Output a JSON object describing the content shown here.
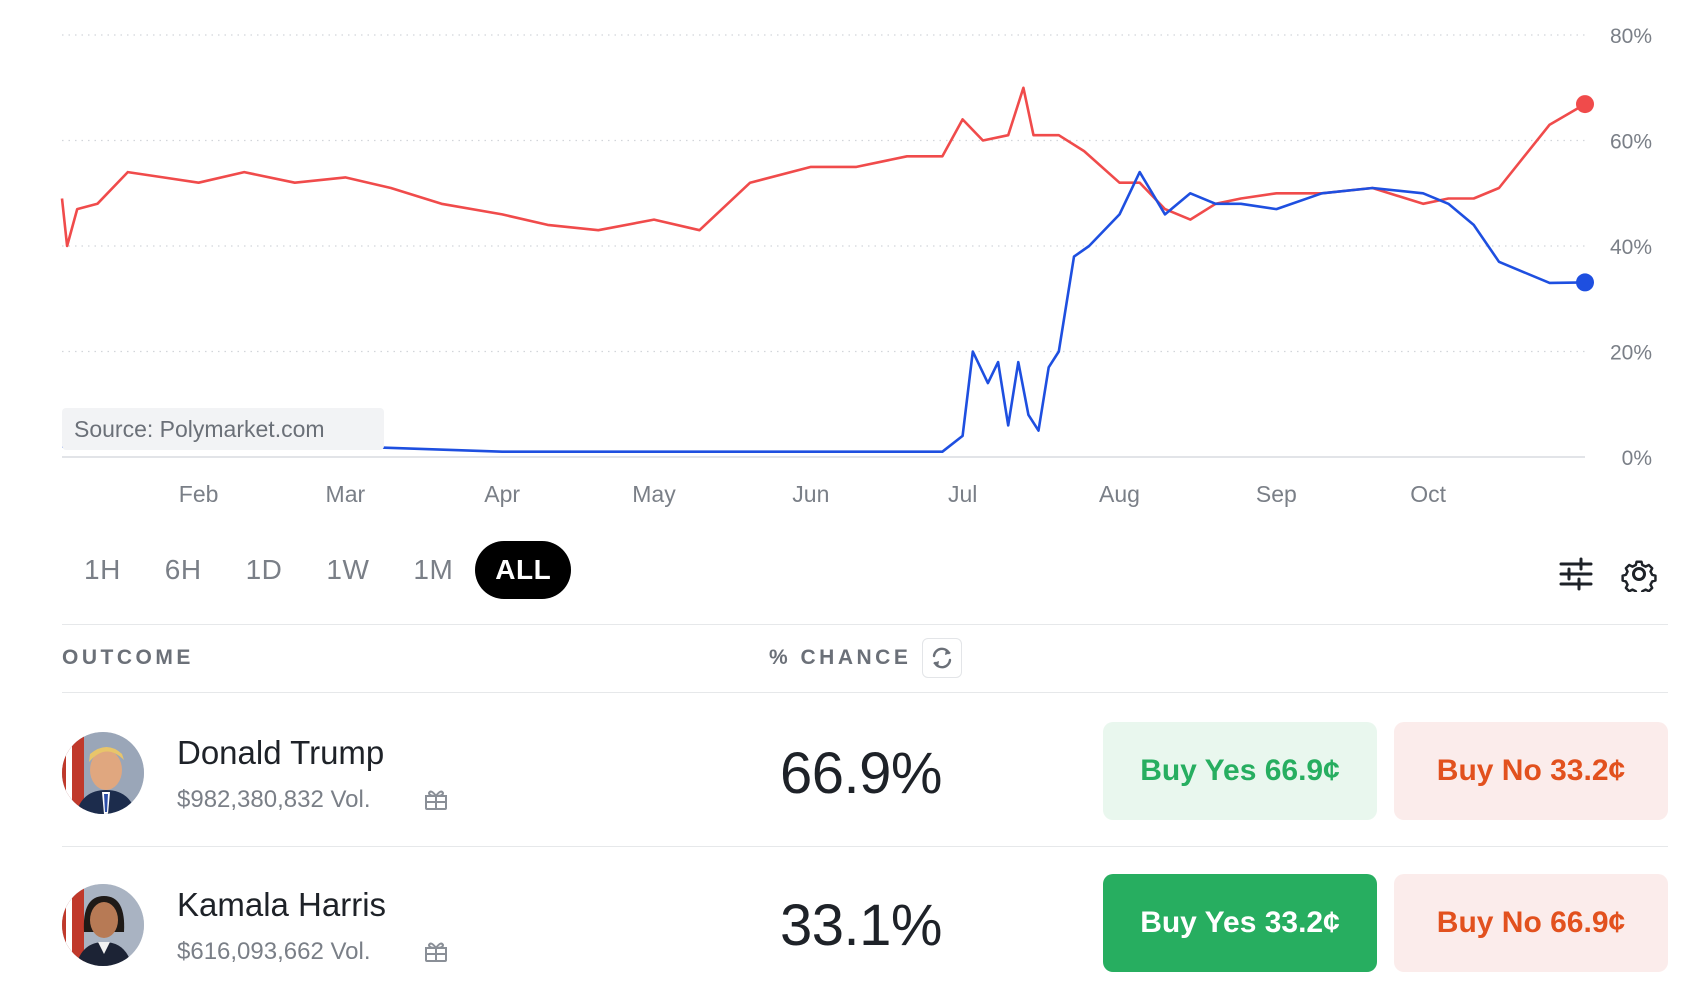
{
  "chart_data": {
    "type": "line",
    "x_ticks": [
      "Feb",
      "Mar",
      "Apr",
      "May",
      "Jun",
      "Jul",
      "Aug",
      "Sep",
      "Oct"
    ],
    "y_ticks": [
      "80%",
      "60%",
      "40%",
      "20%",
      "0%"
    ],
    "ylim": [
      0,
      80
    ],
    "x_range": [
      "2024-01-05",
      "2024-11-01"
    ],
    "grid": "horizontal dotted",
    "source_label": "Source: Polymarket.com",
    "series": [
      {
        "color": "#f04b4b",
        "x": [
          "2024-01-05",
          "2024-01-06",
          "2024-01-08",
          "2024-01-12",
          "2024-01-18",
          "2024-01-25",
          "2024-02-01",
          "2024-02-10",
          "2024-02-20",
          "2024-03-01",
          "2024-03-10",
          "2024-03-20",
          "2024-04-01",
          "2024-04-10",
          "2024-04-20",
          "2024-05-01",
          "2024-05-10",
          "2024-05-20",
          "2024-06-01",
          "2024-06-10",
          "2024-06-20",
          "2024-06-27",
          "2024-07-01",
          "2024-07-05",
          "2024-07-10",
          "2024-07-13",
          "2024-07-15",
          "2024-07-20",
          "2024-07-25",
          "2024-08-01",
          "2024-08-05",
          "2024-08-10",
          "2024-08-15",
          "2024-08-20",
          "2024-08-25",
          "2024-09-01",
          "2024-09-10",
          "2024-09-20",
          "2024-09-30",
          "2024-10-05",
          "2024-10-10",
          "2024-10-15",
          "2024-10-20",
          "2024-10-25",
          "2024-11-01"
        ],
        "y": [
          49,
          40,
          47,
          48,
          54,
          53,
          52,
          54,
          52,
          53,
          51,
          48,
          46,
          44,
          43,
          45,
          43,
          52,
          55,
          55,
          57,
          57,
          64,
          60,
          61,
          70,
          61,
          61,
          58,
          52,
          52,
          47,
          45,
          48,
          49,
          50,
          50,
          51,
          48,
          49,
          49,
          51,
          57,
          63,
          66.9
        ]
      },
      {
        "color": "#1e4fe0",
        "x": [
          "2024-01-05",
          "2024-02-01",
          "2024-03-01",
          "2024-04-01",
          "2024-05-01",
          "2024-06-01",
          "2024-06-20",
          "2024-06-27",
          "2024-07-01",
          "2024-07-03",
          "2024-07-06",
          "2024-07-08",
          "2024-07-10",
          "2024-07-12",
          "2024-07-14",
          "2024-07-16",
          "2024-07-18",
          "2024-07-20",
          "2024-07-23",
          "2024-07-26",
          "2024-08-01",
          "2024-08-05",
          "2024-08-10",
          "2024-08-15",
          "2024-08-20",
          "2024-08-25",
          "2024-09-01",
          "2024-09-10",
          "2024-09-20",
          "2024-09-30",
          "2024-10-05",
          "2024-10-10",
          "2024-10-15",
          "2024-10-20",
          "2024-10-25",
          "2024-11-01"
        ],
        "y": [
          2,
          2,
          2,
          1,
          1,
          1,
          1,
          1,
          4,
          20,
          14,
          18,
          6,
          18,
          8,
          5,
          17,
          20,
          38,
          40,
          46,
          54,
          46,
          50,
          48,
          48,
          47,
          50,
          51,
          50,
          48,
          44,
          37,
          35,
          33,
          33.1
        ]
      }
    ]
  },
  "time_range": {
    "tabs": [
      "1H",
      "6H",
      "1D",
      "1W",
      "1M",
      "ALL"
    ],
    "active": "ALL"
  },
  "table": {
    "col_outcome": "OUTCOME",
    "col_chance": "% CHANCE",
    "rows": [
      {
        "name": "Donald Trump",
        "volume": "$982,380,832 Vol.",
        "chance": "66.9%",
        "buy_yes": "Buy Yes 66.9¢",
        "buy_no": "Buy No 33.2¢"
      },
      {
        "name": "Kamala Harris",
        "volume": "$616,093,662 Vol.",
        "chance": "33.1%",
        "buy_yes": "Buy Yes 33.2¢",
        "buy_no": "Buy No 66.9¢"
      }
    ]
  },
  "icons": {
    "filters": "sliders-icon",
    "settings": "gear-icon",
    "refresh": "refresh-icon",
    "gift": "gift-icon"
  },
  "colors": {
    "trump_line": "#f04b4b",
    "harris_line": "#1e4fe0",
    "buy_yes": "#27ae60",
    "buy_no": "#e2511e",
    "active_tab": "#000000"
  }
}
